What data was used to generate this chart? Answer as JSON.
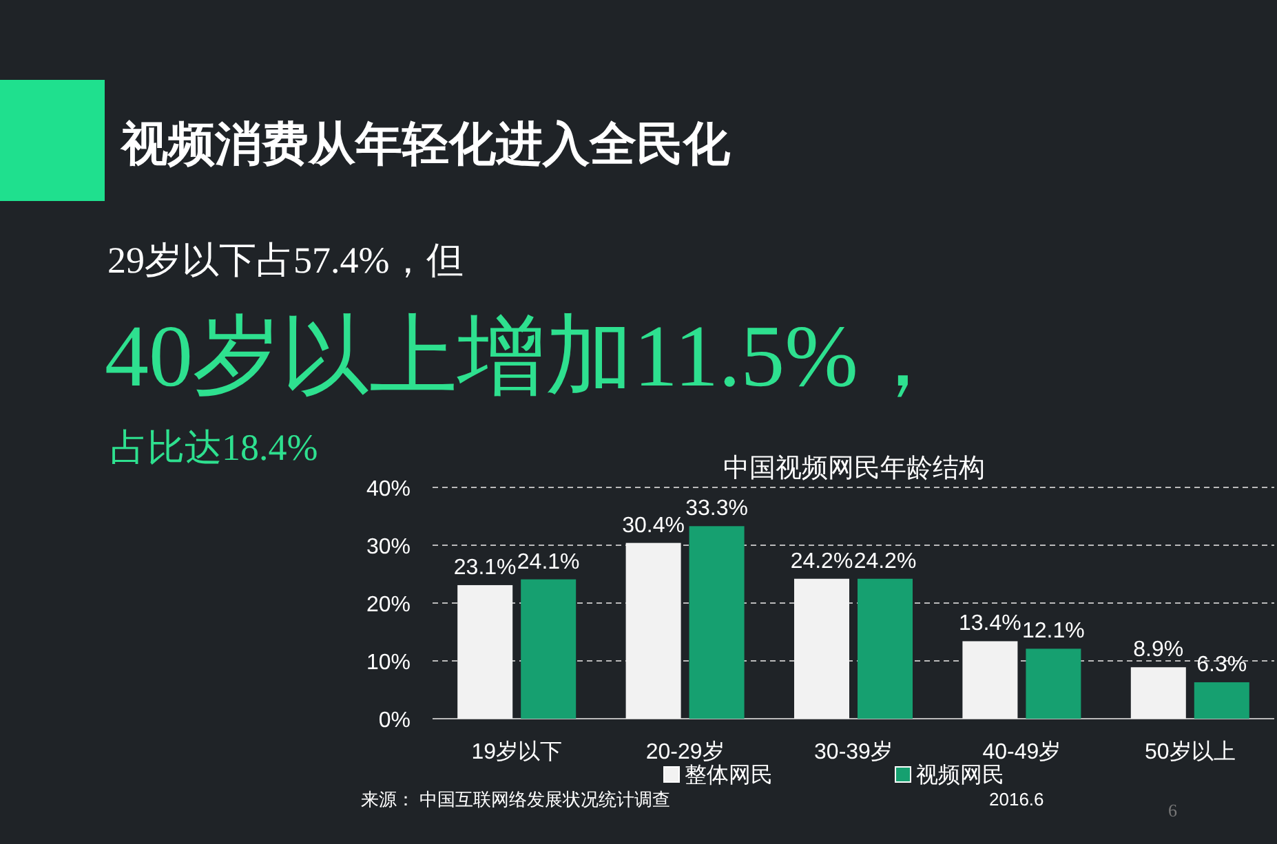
{
  "chart_data": {
    "type": "bar",
    "title": "视频消费从年轻化进入全民化",
    "subtitle": "中国视频网民年龄结构",
    "annotations": [
      "29岁以下占57.4%，但",
      "40岁以上增加11.5%，",
      "占比达18.4%",
      "来源：  中国互联网络发展状况统计调查",
      "2016.6",
      "6"
    ],
    "categories": [
      "19岁以下",
      "20-29岁",
      "30-39岁",
      "40-49岁",
      "50岁以上"
    ],
    "series": [
      {
        "name": "整体网民",
        "color": "#f2f2f2",
        "values": [
          23.1,
          30.4,
          24.2,
          13.4,
          8.9
        ],
        "value_labels": [
          "23.1%",
          "30.4%",
          "24.2%",
          "13.4%",
          "8.9%"
        ]
      },
      {
        "name": "视频网民",
        "color": "#16a070",
        "values": [
          24.1,
          33.3,
          24.2,
          12.1,
          6.3
        ],
        "value_labels": [
          "24.1%",
          "33.3%",
          "24.2%",
          "12.1%",
          "6.3%"
        ]
      }
    ],
    "ylim": [
      0,
      40
    ],
    "yticks": [
      {
        "value": 0,
        "label": "0%"
      },
      {
        "value": 10,
        "label": "10%"
      },
      {
        "value": 20,
        "label": "20%"
      },
      {
        "value": 30,
        "label": "30%"
      },
      {
        "value": 40,
        "label": "40%"
      }
    ],
    "grid": "y",
    "legend": "bottom"
  }
}
